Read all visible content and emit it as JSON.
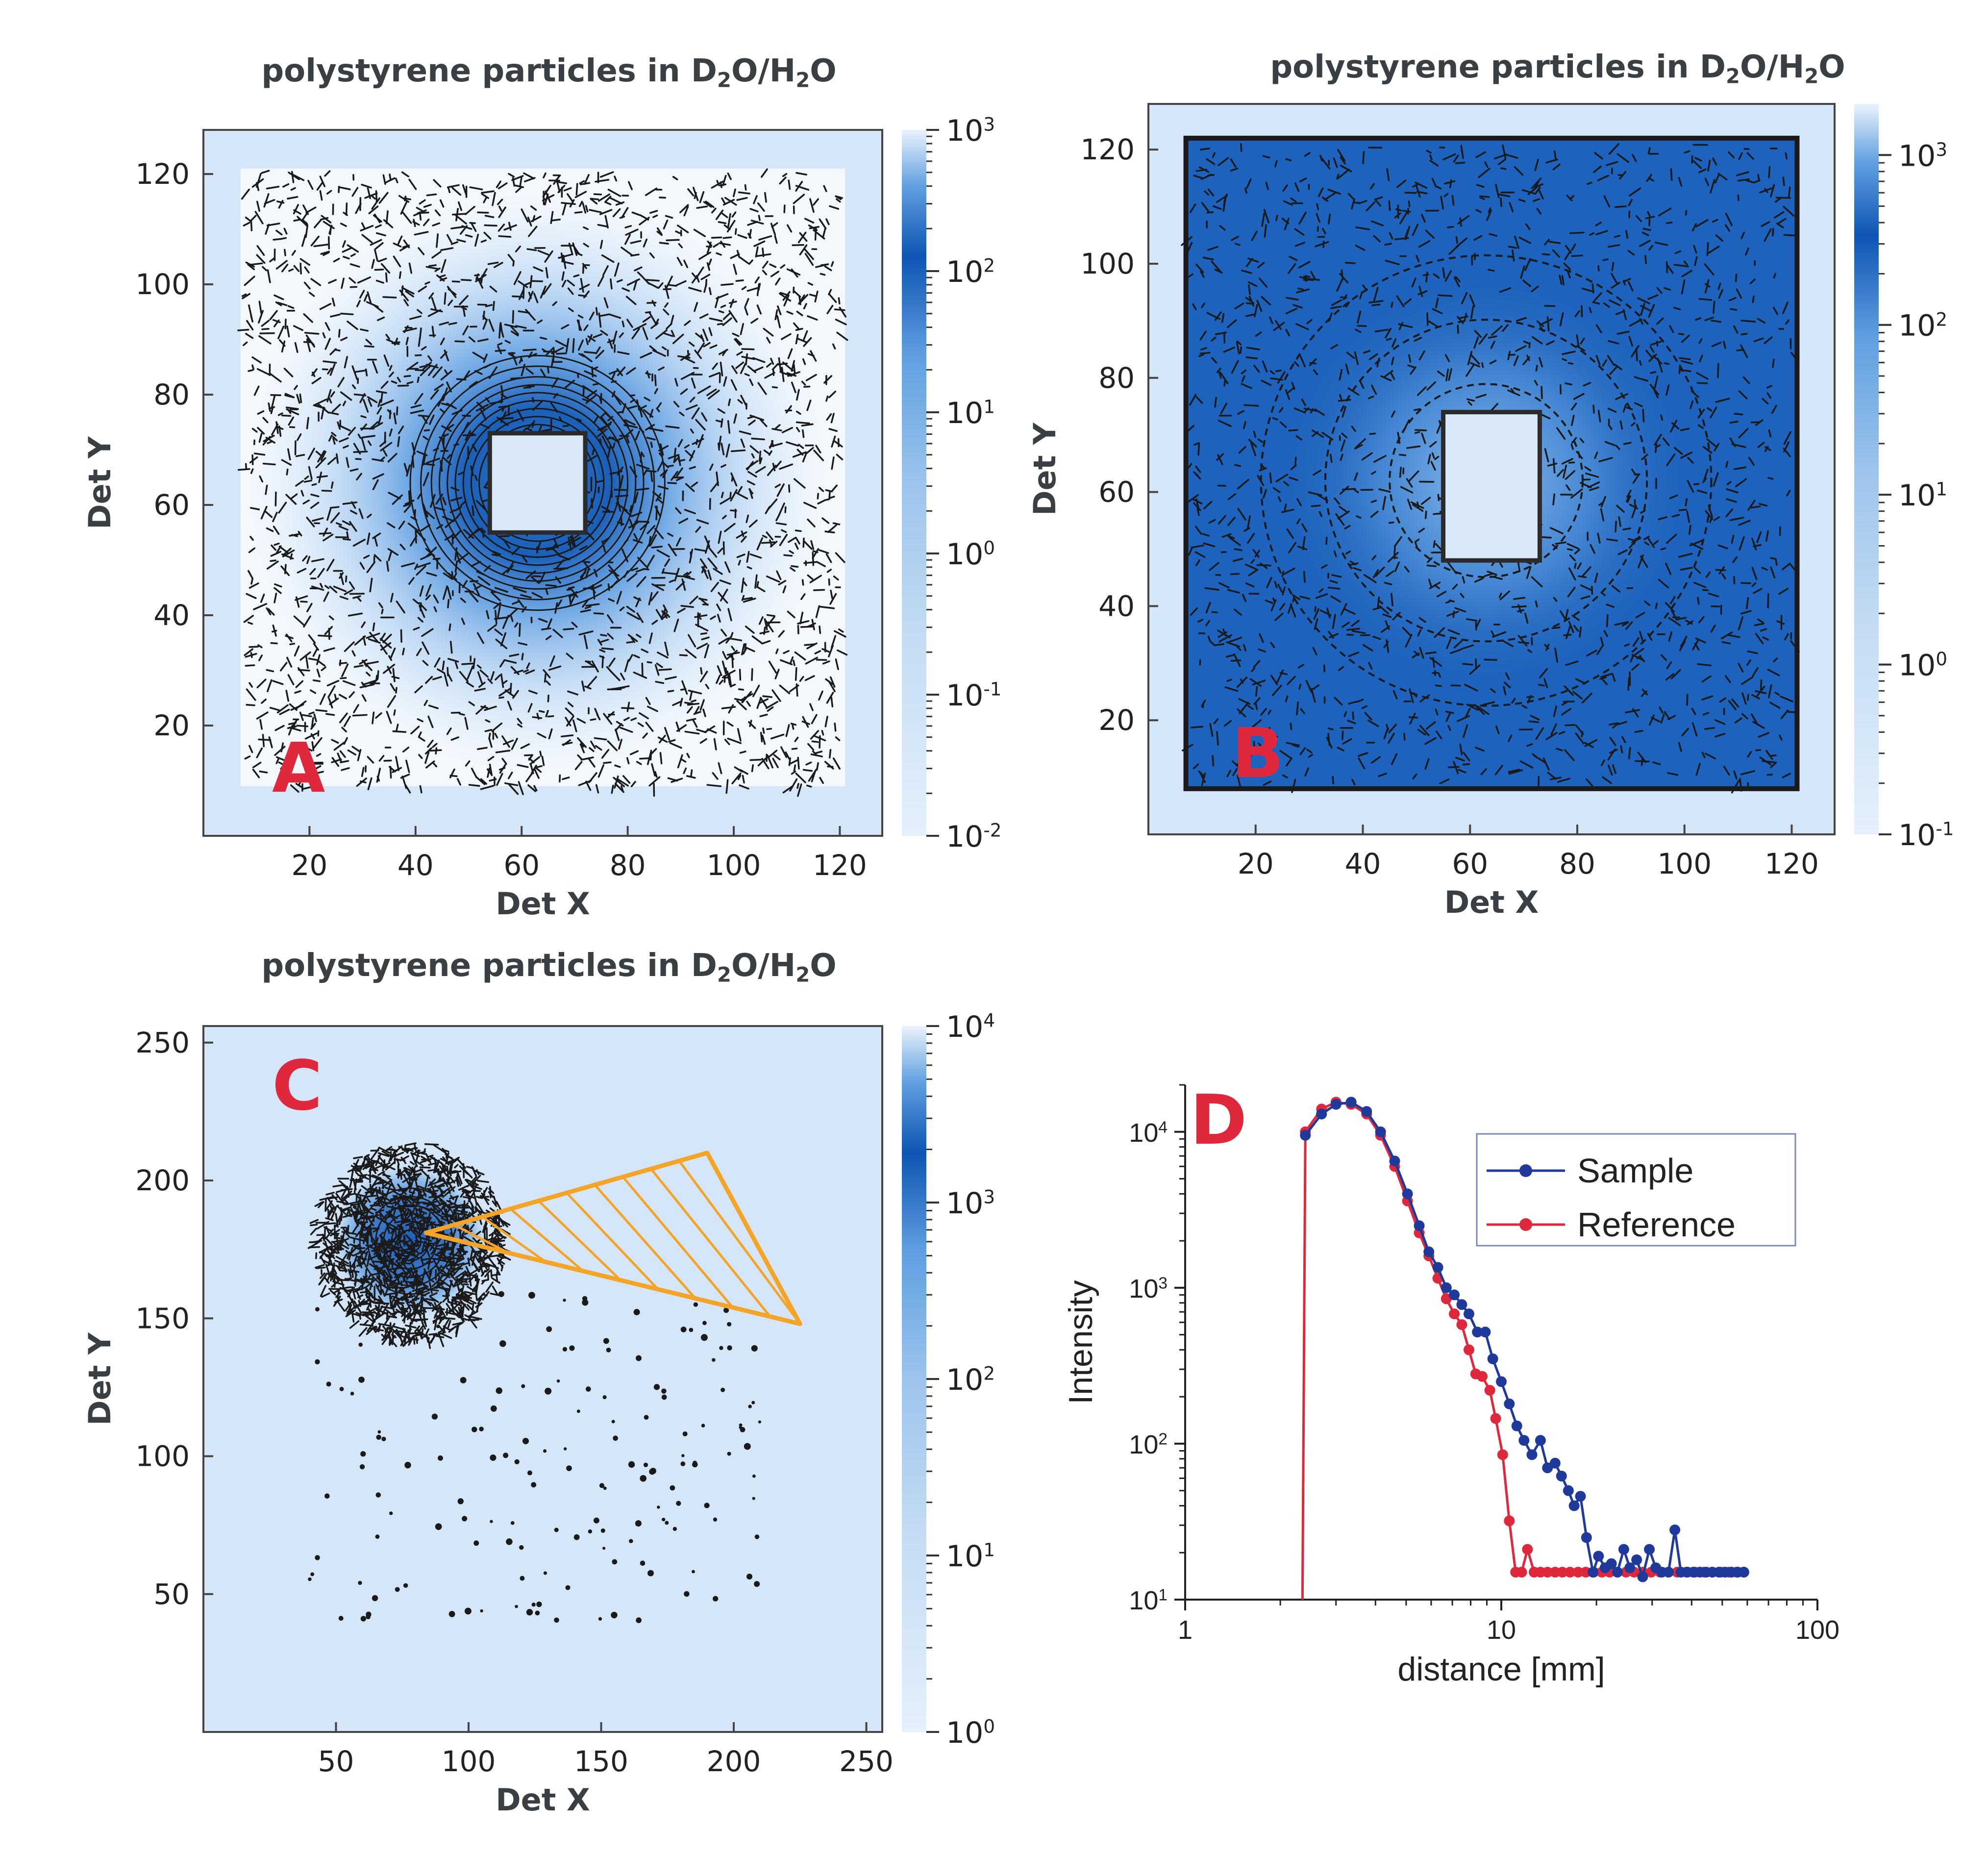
{
  "colors": {
    "heat_light": "#d4e6f7",
    "heat_mid": "#5f9fe0",
    "heat_dark": "#0f55b5",
    "contour": "#1a1a1a",
    "letter": "#e0283c",
    "sector": "#f4a427",
    "sample": "#1f3a9a",
    "reference": "#e0283c"
  },
  "chart_data": [
    {
      "panel_letter": "A",
      "type": "heatmap",
      "title_parts": [
        "polystyrene particles in D",
        "2",
        "O/H",
        "2",
        "O"
      ],
      "xlabel": "Det X",
      "ylabel": "Det Y",
      "x_ticks": [
        "20",
        "40",
        "60",
        "80",
        "100",
        "120"
      ],
      "y_ticks": [
        "20",
        "40",
        "60",
        "80",
        "100",
        "120"
      ],
      "xlim": [
        0,
        128
      ],
      "ylim": [
        0,
        128
      ],
      "beamstop": {
        "x": [
          54,
          72
        ],
        "y": [
          55,
          73
        ]
      },
      "intensity_ring": {
        "center": [
          63,
          64
        ],
        "radius": 25
      },
      "colorbar": {
        "scale": "log",
        "range": [
          0.01,
          1000
        ],
        "tick_labels": [
          "10^3",
          "10^2",
          "10^1",
          "10^0",
          "10^-1",
          "10^-2"
        ]
      }
    },
    {
      "panel_letter": "B",
      "type": "heatmap",
      "title_parts": [
        "polystyrene particles in D",
        "2",
        "O/H",
        "2",
        "O"
      ],
      "xlabel": "Det X",
      "ylabel": "Det Y",
      "x_ticks": [
        "20",
        "40",
        "60",
        "80",
        "100",
        "120"
      ],
      "y_ticks": [
        "20",
        "40",
        "60",
        "80",
        "100",
        "120"
      ],
      "xlim": [
        0,
        128
      ],
      "ylim": [
        0,
        128
      ],
      "beamstop": {
        "x": [
          55,
          73
        ],
        "y": [
          48,
          74
        ]
      },
      "intensity_ring": {
        "center": [
          63,
          62
        ],
        "radius": 28
      },
      "colorbar": {
        "scale": "log",
        "range": [
          0.1,
          2000
        ],
        "tick_labels": [
          "10^3",
          "10^2",
          "10^1",
          "10^0",
          "10^-1"
        ]
      }
    },
    {
      "panel_letter": "C",
      "type": "heatmap",
      "title_parts": [
        "polystyrene particles in D",
        "2",
        "O/H",
        "2",
        "O"
      ],
      "xlabel": "Det X",
      "ylabel": "Det Y",
      "x_ticks": [
        "50",
        "100",
        "150",
        "200",
        "250"
      ],
      "y_ticks": [
        "50",
        "100",
        "150",
        "200",
        "250"
      ],
      "xlim": [
        0,
        256
      ],
      "ylim": [
        0,
        256
      ],
      "beam_center": [
        80,
        180
      ],
      "sector": {
        "apex": [
          84,
          181
        ],
        "end_upper": [
          190,
          210
        ],
        "end_lower": [
          225,
          148
        ]
      },
      "colorbar": {
        "scale": "log",
        "range": [
          1,
          10000
        ],
        "tick_labels": [
          "10^4",
          "10^3",
          "10^2",
          "10^1",
          "10^0"
        ]
      }
    },
    {
      "panel_letter": "D",
      "type": "line",
      "xlabel": "distance [mm]",
      "ylabel": "Intensity",
      "x_scale": "log",
      "y_scale": "log",
      "xlim": [
        1,
        100
      ],
      "ylim": [
        10,
        20000
      ],
      "x_ticks": [
        "1",
        "10",
        "100"
      ],
      "y_tick_labels": [
        "10^4",
        "10^3",
        "10^2",
        "10^1"
      ],
      "legend": [
        "Sample",
        "Reference"
      ],
      "series": [
        {
          "name": "Sample",
          "x": [
            2.4,
            2.7,
            3.0,
            3.35,
            3.75,
            4.15,
            4.6,
            5.05,
            5.5,
            5.9,
            6.3,
            6.7,
            7.1,
            7.5,
            7.9,
            8.4,
            8.9,
            9.4,
            10.0,
            10.6,
            11.2,
            11.8,
            12.5,
            13.3,
            14.0,
            14.8,
            15.5,
            16.3,
            17.0,
            17.8,
            18.6,
            19.5,
            20.3,
            21.3,
            22.3,
            23.3,
            24.4,
            25.5,
            26.8,
            28.0,
            29.4,
            30.8,
            32.2,
            33.8,
            35.4,
            37.0,
            38.8,
            40.5,
            42.5,
            44.5,
            46.5,
            48.8,
            51.0,
            53.5,
            56.0,
            58.5
          ],
          "y": [
            9500,
            13000,
            15000,
            15500,
            13500,
            10000,
            6500,
            4000,
            2500,
            1700,
            1350,
            1000,
            900,
            780,
            680,
            520,
            520,
            350,
            250,
            180,
            130,
            105,
            85,
            105,
            70,
            75,
            62,
            50,
            40,
            46,
            25,
            15,
            19,
            16,
            17,
            15,
            21,
            16,
            18,
            14,
            21,
            16,
            15,
            15,
            28,
            15,
            15,
            15,
            15,
            15,
            15,
            15,
            15,
            15,
            15,
            15
          ]
        },
        {
          "name": "Reference",
          "x": [
            2.35,
            2.4,
            2.7,
            3.0,
            3.35,
            3.75,
            4.15,
            4.6,
            5.05,
            5.5,
            5.9,
            6.3,
            6.7,
            7.1,
            7.5,
            7.9,
            8.3,
            8.7,
            9.2,
            9.6,
            10.1,
            10.6,
            11.1,
            11.6,
            12.1,
            12.7,
            13.3,
            14.0,
            14.8,
            15.6,
            16.5,
            17.5,
            18.5,
            19.6,
            20.8,
            22.0,
            23.3,
            24.8,
            26.3,
            28.0,
            29.8,
            31.8,
            33.8,
            36.0,
            38.5,
            41.0,
            43.8,
            46.5,
            49.5,
            52.5,
            55.5,
            58.5
          ],
          "y": [
            10,
            10000,
            14000,
            15500,
            15000,
            13000,
            9500,
            6000,
            3600,
            2250,
            1600,
            1150,
            850,
            680,
            580,
            400,
            280,
            270,
            220,
            145,
            85,
            32,
            15,
            15,
            21,
            15,
            15,
            15,
            15,
            15,
            15,
            15,
            15,
            15,
            15,
            15,
            15,
            15,
            15,
            15,
            15,
            15,
            15,
            15,
            15,
            15,
            15,
            15,
            15,
            15,
            15,
            15
          ]
        }
      ]
    }
  ]
}
